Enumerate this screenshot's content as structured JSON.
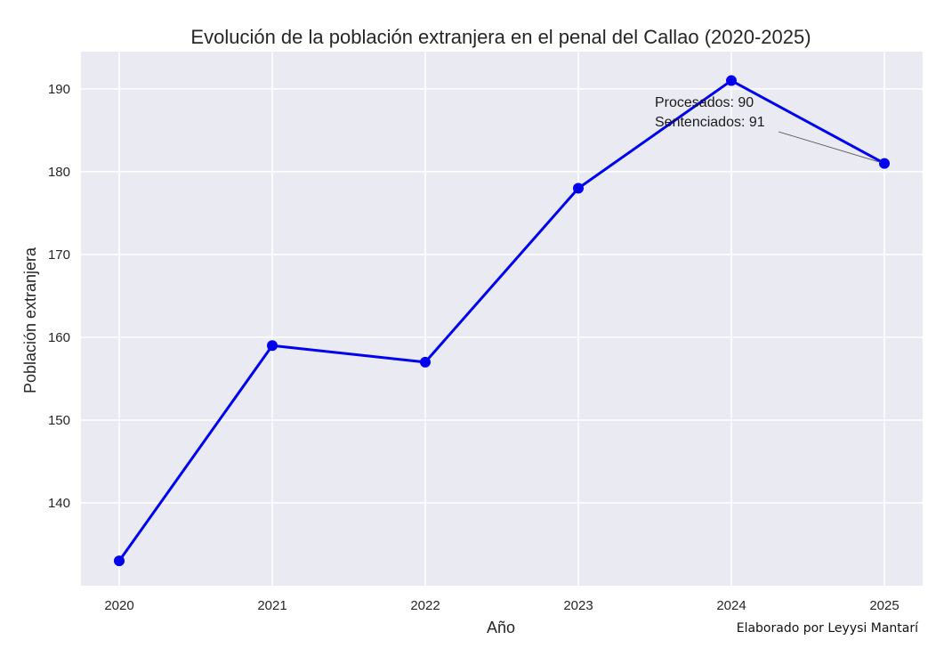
{
  "chart_data": {
    "type": "line",
    "title": "Evolución de la población extranjera en el penal del Callao (2020-2025)",
    "xlabel": "Año",
    "ylabel": "Población extranjera",
    "categories": [
      "2020",
      "2021",
      "2022",
      "2023",
      "2024",
      "2025"
    ],
    "series": [
      {
        "name": "Población extranjera",
        "values": [
          133,
          159,
          157,
          178,
          191,
          181
        ],
        "color": "#0000ee"
      }
    ],
    "ylim": [
      130,
      194.5
    ],
    "yticks": [
      140,
      150,
      160,
      170,
      180,
      190
    ],
    "grid": true,
    "annotation": {
      "lines": [
        "Procesados: 90",
        "Sentenciados: 91"
      ],
      "target_category": "2025",
      "target_value": 181
    },
    "colors": {
      "background": "#eaeaf2",
      "grid": "#ffffff",
      "line": "#0000ee"
    }
  },
  "credit": "Elaborado por Leyysi Mantarí"
}
